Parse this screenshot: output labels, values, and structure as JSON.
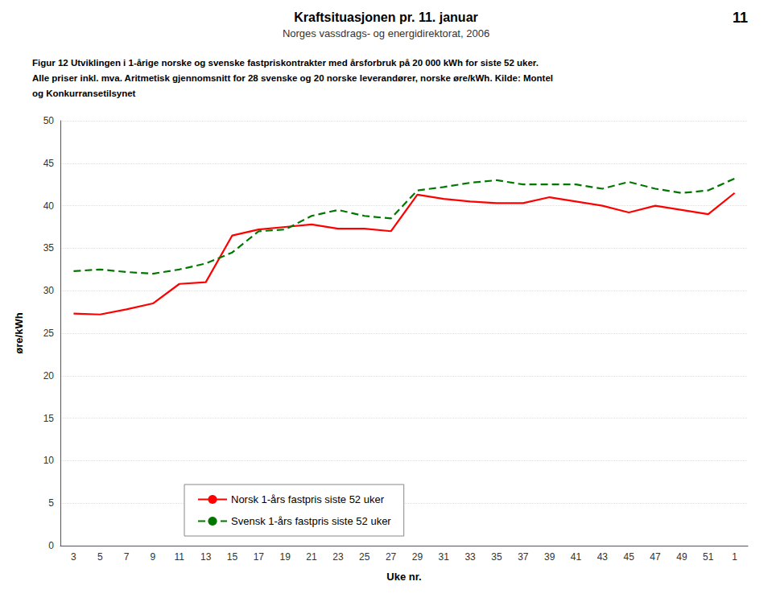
{
  "chart_data": {
    "type": "line",
    "title": "Kraftsituasjonen pr. 11. januar",
    "subtitle": "Norges vassdrags- og energidirektorat, 2006",
    "annotations": [
      "11",
      "Figur 12 Utviklingen i 1-årige norske og svenske fastpriskontrakter med årsforbruk på 20 000 kWh for siste 52 uker.",
      "Alle priser inkl. mva. Aritmetisk gjennomsnitt for 28 svenske og 20 norske leverandører, norske øre/kWh. Kilde: Montel",
      "og Konkurransetilsynet"
    ],
    "xlabel": "Uke nr.",
    "ylabel": "øre/kWh",
    "categories": [
      "3",
      "5",
      "7",
      "9",
      "11",
      "13",
      "15",
      "17",
      "19",
      "21",
      "23",
      "25",
      "27",
      "29",
      "31",
      "33",
      "35",
      "37",
      "39",
      "41",
      "43",
      "45",
      "47",
      "49",
      "51",
      "1"
    ],
    "series": [
      {
        "name": "Norsk 1-års fastpris siste 52 uker",
        "color": "#FF0000",
        "line_style": "solid",
        "values": [
          27.3,
          27.2,
          27.8,
          28.5,
          30.8,
          31.0,
          36.5,
          37.2,
          37.5,
          37.8,
          37.3,
          37.3,
          37.0,
          41.3,
          40.8,
          40.5,
          40.3,
          40.3,
          41.0,
          40.5,
          40.0,
          39.2,
          40.0,
          39.5,
          39.0,
          41.5
        ]
      },
      {
        "name": "Svensk 1-års fastpris siste 52 uker",
        "color": "#007700",
        "line_style": "dashed",
        "values": [
          32.3,
          32.5,
          32.2,
          32.0,
          32.5,
          33.2,
          34.5,
          37.0,
          37.2,
          38.8,
          39.5,
          38.8,
          38.5,
          41.8,
          42.2,
          42.7,
          43.0,
          42.5,
          42.5,
          42.5,
          42.0,
          42.8,
          42.0,
          41.5,
          41.8,
          43.2
        ]
      }
    ],
    "ylim": [
      0,
      50
    ],
    "yticks": [
      0,
      5,
      10,
      15,
      20,
      25,
      30,
      35,
      40,
      45,
      50
    ],
    "grid": true,
    "legend": "lower left"
  }
}
